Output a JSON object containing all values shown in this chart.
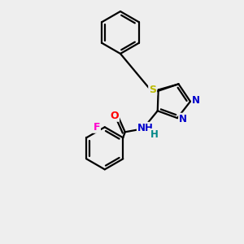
{
  "background_color": "#eeeeee",
  "bond_color": "#000000",
  "atom_colors": {
    "S": "#bbbb00",
    "N": "#0000cc",
    "O": "#ff0000",
    "F": "#ff00cc",
    "H": "#008888",
    "C": "#000000"
  },
  "figsize": [
    3.0,
    3.0
  ],
  "dpi": 100
}
